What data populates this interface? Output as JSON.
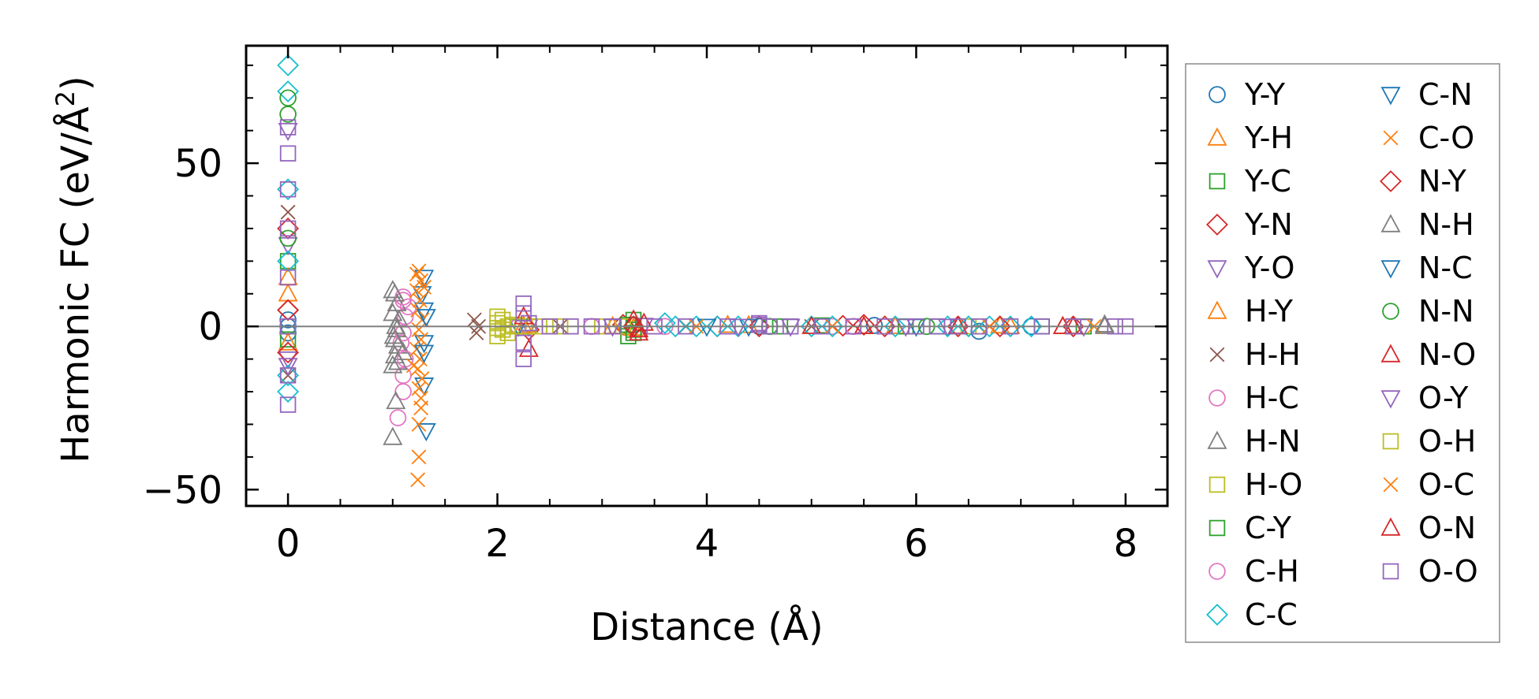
{
  "chart_data": {
    "type": "scatter",
    "xlabel": "Distance (Å)",
    "ylabel": "Harmonic FC (eV/Å",
    "ylabel_sup": "2",
    "ylabel_close": ")",
    "xlim": [
      -0.4,
      8.4
    ],
    "ylim": [
      -55,
      86
    ],
    "x_ticks": [
      0,
      2,
      4,
      6,
      8
    ],
    "x_tick_labels": [
      "0",
      "2",
      "4",
      "6",
      "8"
    ],
    "y_ticks": [
      -50,
      0,
      50
    ],
    "y_tick_labels": [
      "−50",
      "0",
      "50"
    ],
    "grid": false,
    "zero_line": true,
    "legend_position": "outside-right",
    "series": [
      {
        "name": "Y-Y",
        "marker": "circle",
        "color": "#1f77b4",
        "points": [
          [
            0,
            0
          ],
          [
            0,
            2
          ],
          [
            0,
            -2
          ],
          [
            3.3,
            0.5
          ],
          [
            4.5,
            0
          ],
          [
            5.6,
            0.3
          ],
          [
            6.6,
            -1.5
          ],
          [
            7.1,
            0
          ]
        ]
      },
      {
        "name": "Y-H",
        "marker": "triangle-up",
        "color": "#ff7f0e",
        "points": [
          [
            0,
            10
          ],
          [
            0,
            -5
          ],
          [
            2.3,
            0.5
          ],
          [
            3.3,
            -0.5
          ],
          [
            4.4,
            0.3
          ],
          [
            5.8,
            0
          ],
          [
            6.8,
            0.2
          ],
          [
            7.4,
            0
          ]
        ]
      },
      {
        "name": "Y-C",
        "marker": "square",
        "color": "#2ca02c",
        "points": [
          [
            0,
            20
          ],
          [
            0,
            -4
          ],
          [
            3.25,
            -3
          ],
          [
            3.3,
            2
          ],
          [
            3.3,
            -1
          ],
          [
            4.6,
            0
          ],
          [
            5.1,
            0.3
          ],
          [
            6.2,
            0
          ],
          [
            7.6,
            0
          ]
        ]
      },
      {
        "name": "Y-N",
        "marker": "diamond",
        "color": "#d62728",
        "points": [
          [
            0,
            30
          ],
          [
            0,
            5
          ],
          [
            2.3,
            -1
          ],
          [
            3.2,
            0.5
          ],
          [
            4.1,
            0
          ],
          [
            5.3,
            0.2
          ],
          [
            6.4,
            0
          ],
          [
            7.5,
            0
          ]
        ]
      },
      {
        "name": "Y-O",
        "marker": "triangle-down",
        "color": "#9467bd",
        "points": [
          [
            0,
            60
          ],
          [
            0,
            25
          ],
          [
            0,
            -10
          ],
          [
            2.3,
            0
          ],
          [
            3.4,
            0.3
          ],
          [
            4.8,
            0
          ],
          [
            6.3,
            0
          ],
          [
            7.6,
            0
          ]
        ]
      },
      {
        "name": "H-Y",
        "marker": "triangle-up",
        "color": "#ff7f0e",
        "points": [
          [
            0,
            15
          ],
          [
            2.25,
            0.2
          ],
          [
            3.1,
            0
          ],
          [
            4.2,
            0.4
          ],
          [
            5.5,
            0
          ],
          [
            6.9,
            0
          ]
        ]
      },
      {
        "name": "H-H",
        "marker": "x",
        "color": "#8c564b",
        "points": [
          [
            0,
            35
          ],
          [
            0,
            -15
          ],
          [
            1.78,
            2
          ],
          [
            1.8,
            -2
          ],
          [
            1.82,
            0
          ],
          [
            2.6,
            0
          ],
          [
            3.8,
            0
          ],
          [
            5.0,
            0
          ],
          [
            6.6,
            0
          ]
        ]
      },
      {
        "name": "H-C",
        "marker": "circle",
        "color": "#e377c2",
        "points": [
          [
            1.1,
            8
          ],
          [
            1.12,
            3
          ],
          [
            1.08,
            -5
          ],
          [
            1.1,
            -15
          ],
          [
            1.1,
            -20
          ],
          [
            1.05,
            -28
          ],
          [
            1.15,
            6
          ],
          [
            2.2,
            0
          ],
          [
            3.6,
            0
          ],
          [
            5.4,
            0
          ]
        ]
      },
      {
        "name": "H-N",
        "marker": "triangle-up",
        "color": "#7f7f7f",
        "points": [
          [
            1.02,
            10
          ],
          [
            1.04,
            7
          ],
          [
            1.0,
            4
          ],
          [
            1.03,
            0
          ],
          [
            1.01,
            -3
          ],
          [
            1.05,
            -6
          ],
          [
            1.02,
            -9
          ],
          [
            1.0,
            -12
          ],
          [
            1.03,
            -23
          ],
          [
            1.0,
            -34
          ],
          [
            1.06,
            2
          ],
          [
            1.04,
            -1
          ],
          [
            1.1,
            -8
          ],
          [
            7.8,
            0
          ]
        ]
      },
      {
        "name": "H-O",
        "marker": "square",
        "color": "#bcbd22",
        "points": [
          [
            2.0,
            1
          ],
          [
            2.05,
            -1
          ],
          [
            2.1,
            0
          ],
          [
            2.0,
            -0.5
          ],
          [
            2.15,
            0.5
          ],
          [
            2.3,
            0
          ],
          [
            2.4,
            0
          ],
          [
            2.5,
            0
          ],
          [
            2.6,
            0
          ],
          [
            3.0,
            0
          ],
          [
            3.2,
            0
          ],
          [
            6.5,
            0
          ],
          [
            7.5,
            0
          ]
        ]
      },
      {
        "name": "C-Y",
        "marker": "square",
        "color": "#2ca02c",
        "points": [
          [
            3.25,
            0.5
          ],
          [
            3.3,
            -2
          ],
          [
            4.7,
            0
          ],
          [
            5.9,
            0
          ],
          [
            7.2,
            0
          ]
        ]
      },
      {
        "name": "C-H",
        "marker": "circle",
        "color": "#e377c2",
        "points": [
          [
            1.1,
            9
          ],
          [
            1.1,
            -2
          ],
          [
            1.12,
            -10
          ],
          [
            2.9,
            0
          ],
          [
            5.2,
            0
          ]
        ]
      },
      {
        "name": "C-C",
        "marker": "diamond",
        "color": "#17becf",
        "points": [
          [
            0,
            80
          ],
          [
            0,
            72
          ],
          [
            0,
            42
          ],
          [
            0,
            20
          ],
          [
            0,
            -15
          ],
          [
            0,
            -20
          ],
          [
            3.6,
            1
          ],
          [
            3.7,
            0
          ],
          [
            3.9,
            0
          ],
          [
            4.1,
            0
          ],
          [
            4.3,
            0
          ],
          [
            5.0,
            0
          ],
          [
            5.2,
            0
          ],
          [
            5.8,
            0
          ],
          [
            6.3,
            0
          ],
          [
            6.5,
            0
          ],
          [
            6.7,
            0
          ],
          [
            6.9,
            0
          ],
          [
            7.1,
            0
          ]
        ]
      },
      {
        "name": "C-N",
        "marker": "triangle-down",
        "color": "#1f77b4",
        "points": [
          [
            1.3,
            15
          ],
          [
            1.3,
            5
          ],
          [
            1.3,
            -5
          ],
          [
            1.3,
            -18
          ],
          [
            1.32,
            -32
          ],
          [
            1.28,
            10
          ],
          [
            4.0,
            0
          ],
          [
            6.0,
            0
          ]
        ]
      },
      {
        "name": "C-O",
        "marker": "x",
        "color": "#ff7f0e",
        "points": [
          [
            1.25,
            17
          ],
          [
            1.27,
            14
          ],
          [
            1.23,
            11
          ],
          [
            1.26,
            8
          ],
          [
            1.24,
            5
          ],
          [
            1.28,
            2
          ],
          [
            1.25,
            -1
          ],
          [
            1.27,
            -4
          ],
          [
            1.23,
            -7
          ],
          [
            1.26,
            -10
          ],
          [
            1.24,
            -13
          ],
          [
            1.28,
            -16
          ],
          [
            1.25,
            -19
          ],
          [
            1.27,
            -22
          ],
          [
            1.25,
            -30
          ],
          [
            1.25,
            -40
          ],
          [
            1.24,
            -47
          ],
          [
            1.3,
            12
          ],
          [
            1.2,
            -12
          ],
          [
            5.2,
            0
          ],
          [
            7.7,
            0
          ]
        ]
      },
      {
        "name": "N-Y",
        "marker": "diamond",
        "color": "#d62728",
        "points": [
          [
            0,
            5
          ],
          [
            0,
            -8
          ],
          [
            3.3,
            0
          ],
          [
            4.5,
            0
          ],
          [
            5.5,
            0.5
          ],
          [
            5.7,
            0
          ],
          [
            6.8,
            0
          ]
        ]
      },
      {
        "name": "N-H",
        "marker": "triangle-up",
        "color": "#7f7f7f",
        "points": [
          [
            1.0,
            11
          ],
          [
            1.02,
            -4
          ],
          [
            1.05,
            -11
          ],
          [
            7.8,
            0.5
          ]
        ]
      },
      {
        "name": "N-C",
        "marker": "triangle-down",
        "color": "#1f77b4",
        "points": [
          [
            1.3,
            -8
          ],
          [
            1.32,
            3
          ],
          [
            2.2,
            0
          ],
          [
            4.4,
            0
          ]
        ]
      },
      {
        "name": "N-N",
        "marker": "circle",
        "color": "#2ca02c",
        "points": [
          [
            0,
            70
          ],
          [
            0,
            65
          ],
          [
            0,
            27
          ],
          [
            4.6,
            0
          ],
          [
            6.1,
            0
          ]
        ]
      },
      {
        "name": "N-O",
        "marker": "triangle-up",
        "color": "#d62728",
        "points": [
          [
            2.3,
            -7
          ],
          [
            2.25,
            3
          ],
          [
            3.4,
            1
          ],
          [
            3.35,
            -1
          ],
          [
            5.0,
            0
          ],
          [
            6.4,
            0
          ],
          [
            7.5,
            0
          ]
        ]
      },
      {
        "name": "O-Y",
        "marker": "triangle-down",
        "color": "#9467bd",
        "points": [
          [
            0,
            -12
          ],
          [
            3.1,
            0
          ],
          [
            4.3,
            0
          ],
          [
            5.9,
            0
          ]
        ]
      },
      {
        "name": "O-H",
        "marker": "square",
        "color": "#bcbd22",
        "points": [
          [
            2.0,
            3
          ],
          [
            2.0,
            -3
          ],
          [
            2.05,
            2
          ],
          [
            2.1,
            -2
          ],
          [
            2.2,
            0
          ],
          [
            2.5,
            0
          ]
        ]
      },
      {
        "name": "O-C",
        "marker": "x",
        "color": "#ff7f0e",
        "points": [
          [
            1.27,
            -25
          ],
          [
            1.23,
            16
          ],
          [
            3.9,
            0
          ],
          [
            6.7,
            0
          ]
        ]
      },
      {
        "name": "O-N",
        "marker": "triangle-up",
        "color": "#d62728",
        "points": [
          [
            3.3,
            2
          ],
          [
            3.35,
            -2
          ],
          [
            5.5,
            0
          ],
          [
            7.4,
            0
          ]
        ]
      },
      {
        "name": "O-O",
        "marker": "square",
        "color": "#9467bd",
        "points": [
          [
            0,
            61
          ],
          [
            0,
            53
          ],
          [
            0,
            42
          ],
          [
            0,
            30
          ],
          [
            0,
            15
          ],
          [
            0,
            0
          ],
          [
            0,
            -15
          ],
          [
            0,
            -24
          ],
          [
            2.25,
            7
          ],
          [
            2.25,
            4
          ],
          [
            2.25,
            -5
          ],
          [
            2.25,
            -10
          ],
          [
            2.3,
            1
          ],
          [
            2.5,
            0
          ],
          [
            2.7,
            0
          ],
          [
            2.9,
            0
          ],
          [
            3.1,
            0
          ],
          [
            3.5,
            0
          ],
          [
            3.8,
            0
          ],
          [
            4.2,
            0
          ],
          [
            4.5,
            0.5
          ],
          [
            4.5,
            1
          ],
          [
            4.6,
            0
          ],
          [
            4.8,
            0
          ],
          [
            5.1,
            0
          ],
          [
            5.4,
            0
          ],
          [
            5.7,
            0
          ],
          [
            6.0,
            0
          ],
          [
            6.2,
            0
          ],
          [
            6.4,
            0
          ],
          [
            6.6,
            0
          ],
          [
            6.9,
            0
          ],
          [
            7.2,
            0
          ],
          [
            7.5,
            0
          ],
          [
            7.9,
            0
          ],
          [
            8.0,
            0
          ]
        ]
      }
    ]
  }
}
